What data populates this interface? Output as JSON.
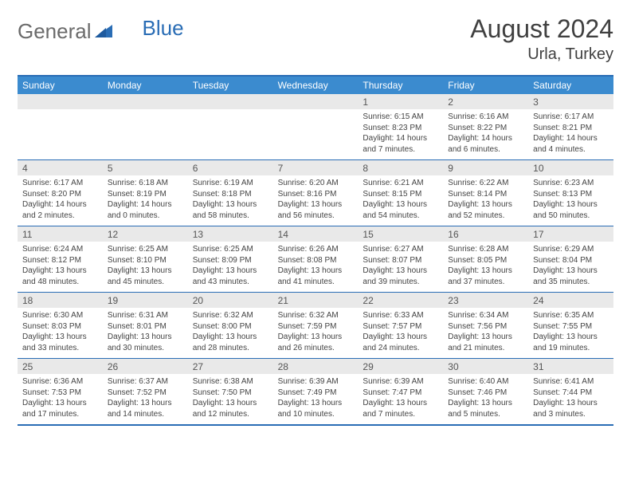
{
  "logo": {
    "general": "General",
    "blue": "Blue"
  },
  "title": "August 2024",
  "location": "Urla, Turkey",
  "colors": {
    "header_bg": "#3b8bcf",
    "border": "#2a6db5",
    "daynum_bg": "#e9e9e9",
    "text": "#404040"
  },
  "weekdays": [
    "Sunday",
    "Monday",
    "Tuesday",
    "Wednesday",
    "Thursday",
    "Friday",
    "Saturday"
  ],
  "weeks": [
    [
      {
        "n": "",
        "sr": "",
        "ss": "",
        "d1": "",
        "d2": ""
      },
      {
        "n": "",
        "sr": "",
        "ss": "",
        "d1": "",
        "d2": ""
      },
      {
        "n": "",
        "sr": "",
        "ss": "",
        "d1": "",
        "d2": ""
      },
      {
        "n": "",
        "sr": "",
        "ss": "",
        "d1": "",
        "d2": ""
      },
      {
        "n": "1",
        "sr": "Sunrise: 6:15 AM",
        "ss": "Sunset: 8:23 PM",
        "d1": "Daylight: 14 hours",
        "d2": "and 7 minutes."
      },
      {
        "n": "2",
        "sr": "Sunrise: 6:16 AM",
        "ss": "Sunset: 8:22 PM",
        "d1": "Daylight: 14 hours",
        "d2": "and 6 minutes."
      },
      {
        "n": "3",
        "sr": "Sunrise: 6:17 AM",
        "ss": "Sunset: 8:21 PM",
        "d1": "Daylight: 14 hours",
        "d2": "and 4 minutes."
      }
    ],
    [
      {
        "n": "4",
        "sr": "Sunrise: 6:17 AM",
        "ss": "Sunset: 8:20 PM",
        "d1": "Daylight: 14 hours",
        "d2": "and 2 minutes."
      },
      {
        "n": "5",
        "sr": "Sunrise: 6:18 AM",
        "ss": "Sunset: 8:19 PM",
        "d1": "Daylight: 14 hours",
        "d2": "and 0 minutes."
      },
      {
        "n": "6",
        "sr": "Sunrise: 6:19 AM",
        "ss": "Sunset: 8:18 PM",
        "d1": "Daylight: 13 hours",
        "d2": "and 58 minutes."
      },
      {
        "n": "7",
        "sr": "Sunrise: 6:20 AM",
        "ss": "Sunset: 8:16 PM",
        "d1": "Daylight: 13 hours",
        "d2": "and 56 minutes."
      },
      {
        "n": "8",
        "sr": "Sunrise: 6:21 AM",
        "ss": "Sunset: 8:15 PM",
        "d1": "Daylight: 13 hours",
        "d2": "and 54 minutes."
      },
      {
        "n": "9",
        "sr": "Sunrise: 6:22 AM",
        "ss": "Sunset: 8:14 PM",
        "d1": "Daylight: 13 hours",
        "d2": "and 52 minutes."
      },
      {
        "n": "10",
        "sr": "Sunrise: 6:23 AM",
        "ss": "Sunset: 8:13 PM",
        "d1": "Daylight: 13 hours",
        "d2": "and 50 minutes."
      }
    ],
    [
      {
        "n": "11",
        "sr": "Sunrise: 6:24 AM",
        "ss": "Sunset: 8:12 PM",
        "d1": "Daylight: 13 hours",
        "d2": "and 48 minutes."
      },
      {
        "n": "12",
        "sr": "Sunrise: 6:25 AM",
        "ss": "Sunset: 8:10 PM",
        "d1": "Daylight: 13 hours",
        "d2": "and 45 minutes."
      },
      {
        "n": "13",
        "sr": "Sunrise: 6:25 AM",
        "ss": "Sunset: 8:09 PM",
        "d1": "Daylight: 13 hours",
        "d2": "and 43 minutes."
      },
      {
        "n": "14",
        "sr": "Sunrise: 6:26 AM",
        "ss": "Sunset: 8:08 PM",
        "d1": "Daylight: 13 hours",
        "d2": "and 41 minutes."
      },
      {
        "n": "15",
        "sr": "Sunrise: 6:27 AM",
        "ss": "Sunset: 8:07 PM",
        "d1": "Daylight: 13 hours",
        "d2": "and 39 minutes."
      },
      {
        "n": "16",
        "sr": "Sunrise: 6:28 AM",
        "ss": "Sunset: 8:05 PM",
        "d1": "Daylight: 13 hours",
        "d2": "and 37 minutes."
      },
      {
        "n": "17",
        "sr": "Sunrise: 6:29 AM",
        "ss": "Sunset: 8:04 PM",
        "d1": "Daylight: 13 hours",
        "d2": "and 35 minutes."
      }
    ],
    [
      {
        "n": "18",
        "sr": "Sunrise: 6:30 AM",
        "ss": "Sunset: 8:03 PM",
        "d1": "Daylight: 13 hours",
        "d2": "and 33 minutes."
      },
      {
        "n": "19",
        "sr": "Sunrise: 6:31 AM",
        "ss": "Sunset: 8:01 PM",
        "d1": "Daylight: 13 hours",
        "d2": "and 30 minutes."
      },
      {
        "n": "20",
        "sr": "Sunrise: 6:32 AM",
        "ss": "Sunset: 8:00 PM",
        "d1": "Daylight: 13 hours",
        "d2": "and 28 minutes."
      },
      {
        "n": "21",
        "sr": "Sunrise: 6:32 AM",
        "ss": "Sunset: 7:59 PM",
        "d1": "Daylight: 13 hours",
        "d2": "and 26 minutes."
      },
      {
        "n": "22",
        "sr": "Sunrise: 6:33 AM",
        "ss": "Sunset: 7:57 PM",
        "d1": "Daylight: 13 hours",
        "d2": "and 24 minutes."
      },
      {
        "n": "23",
        "sr": "Sunrise: 6:34 AM",
        "ss": "Sunset: 7:56 PM",
        "d1": "Daylight: 13 hours",
        "d2": "and 21 minutes."
      },
      {
        "n": "24",
        "sr": "Sunrise: 6:35 AM",
        "ss": "Sunset: 7:55 PM",
        "d1": "Daylight: 13 hours",
        "d2": "and 19 minutes."
      }
    ],
    [
      {
        "n": "25",
        "sr": "Sunrise: 6:36 AM",
        "ss": "Sunset: 7:53 PM",
        "d1": "Daylight: 13 hours",
        "d2": "and 17 minutes."
      },
      {
        "n": "26",
        "sr": "Sunrise: 6:37 AM",
        "ss": "Sunset: 7:52 PM",
        "d1": "Daylight: 13 hours",
        "d2": "and 14 minutes."
      },
      {
        "n": "27",
        "sr": "Sunrise: 6:38 AM",
        "ss": "Sunset: 7:50 PM",
        "d1": "Daylight: 13 hours",
        "d2": "and 12 minutes."
      },
      {
        "n": "28",
        "sr": "Sunrise: 6:39 AM",
        "ss": "Sunset: 7:49 PM",
        "d1": "Daylight: 13 hours",
        "d2": "and 10 minutes."
      },
      {
        "n": "29",
        "sr": "Sunrise: 6:39 AM",
        "ss": "Sunset: 7:47 PM",
        "d1": "Daylight: 13 hours",
        "d2": "and 7 minutes."
      },
      {
        "n": "30",
        "sr": "Sunrise: 6:40 AM",
        "ss": "Sunset: 7:46 PM",
        "d1": "Daylight: 13 hours",
        "d2": "and 5 minutes."
      },
      {
        "n": "31",
        "sr": "Sunrise: 6:41 AM",
        "ss": "Sunset: 7:44 PM",
        "d1": "Daylight: 13 hours",
        "d2": "and 3 minutes."
      }
    ]
  ]
}
